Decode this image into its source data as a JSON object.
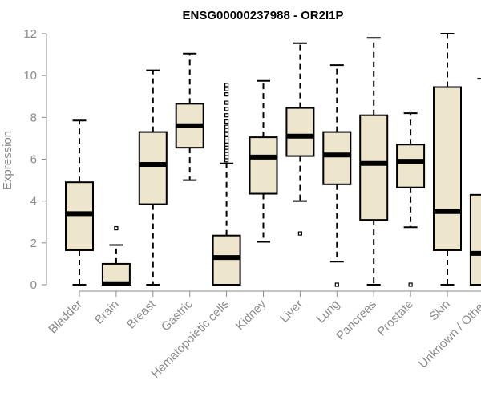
{
  "chart_data": {
    "type": "boxplot",
    "title": "ENSG00000237988 - OR2I1P",
    "ylabel": "Expression",
    "xlabel": "",
    "ylim": [
      0,
      12
    ],
    "yticks": [
      0,
      2,
      4,
      6,
      8,
      10,
      12
    ],
    "box_fill": "#ede6cc",
    "categories": [
      "Bladder",
      "Brain",
      "Breast",
      "Gastric",
      "Hematopoietic cells",
      "Kidney",
      "Liver",
      "Lung",
      "Pancreas",
      "Prostate",
      "Skin",
      "Unknown / Other"
    ],
    "boxes": [
      {
        "min": 0.0,
        "q1": 1.65,
        "median": 3.4,
        "q3": 4.9,
        "max": 7.85,
        "outliers": []
      },
      {
        "min": 0.0,
        "q1": 0.0,
        "median": 0.05,
        "q3": 1.0,
        "max": 1.9,
        "outliers": [
          2.7
        ]
      },
      {
        "min": 0.0,
        "q1": 3.85,
        "median": 5.75,
        "q3": 7.3,
        "max": 10.25,
        "outliers": []
      },
      {
        "min": 5.0,
        "q1": 6.55,
        "median": 7.6,
        "q3": 8.65,
        "max": 11.05,
        "outliers": []
      },
      {
        "min": 0.0,
        "q1": 0.0,
        "median": 1.3,
        "q3": 2.35,
        "max": 5.8,
        "outliers": [
          5.95,
          6.1,
          6.25,
          6.4,
          6.55,
          6.7,
          6.85,
          7.0,
          7.2,
          7.4,
          7.55,
          7.8,
          8.1,
          8.4,
          8.7,
          9.1,
          9.35,
          9.55
        ]
      },
      {
        "min": 2.05,
        "q1": 4.35,
        "median": 6.1,
        "q3": 7.05,
        "max": 9.75,
        "outliers": []
      },
      {
        "min": 4.0,
        "q1": 6.15,
        "median": 7.1,
        "q3": 8.45,
        "max": 11.55,
        "outliers": [
          2.45
        ]
      },
      {
        "min": 1.1,
        "q1": 4.8,
        "median": 6.2,
        "q3": 7.3,
        "max": 10.5,
        "outliers": [
          0.0
        ]
      },
      {
        "min": 0.0,
        "q1": 3.1,
        "median": 5.8,
        "q3": 8.1,
        "max": 11.8,
        "outliers": []
      },
      {
        "min": 2.75,
        "q1": 4.65,
        "median": 5.9,
        "q3": 6.7,
        "max": 8.2,
        "outliers": [
          0.0
        ]
      },
      {
        "min": 0.0,
        "q1": 1.65,
        "median": 3.5,
        "q3": 9.45,
        "max": 12.0,
        "outliers": []
      },
      {
        "min": 0.0,
        "q1": 0.0,
        "median": 1.5,
        "q3": 4.3,
        "max": 9.85,
        "outliers": []
      }
    ]
  }
}
